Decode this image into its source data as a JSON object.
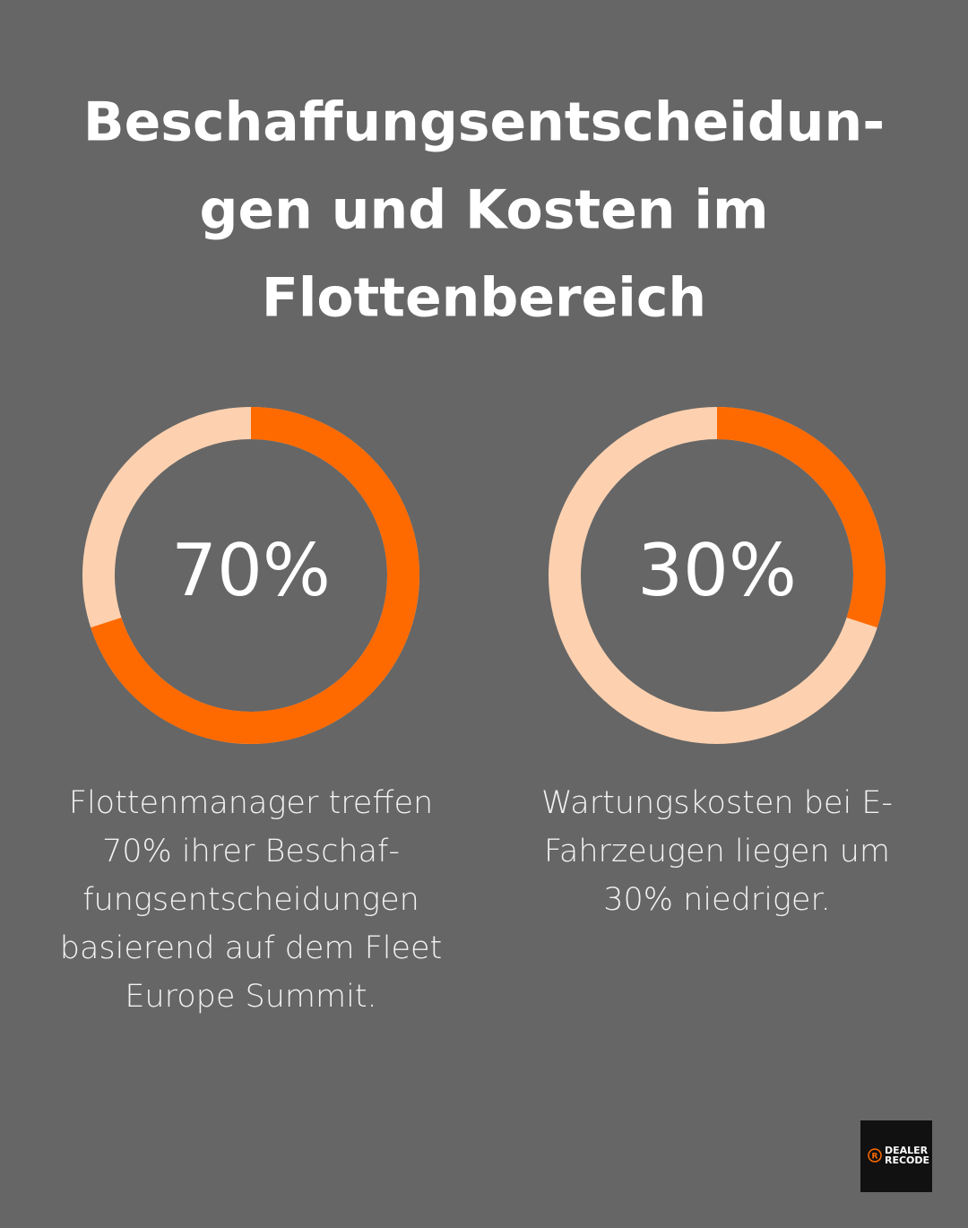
{
  "title": [
    "Beschaffungsentscheidun-",
    "gen und Kosten im",
    "Flottenbereich"
  ],
  "chart_data": [
    {
      "type": "donut",
      "values": [
        70
      ],
      "value_labels": [
        "70%"
      ],
      "color": "#ff6a00",
      "track_color": "#fdd1b0",
      "ylim": [
        0,
        100
      ],
      "description": [
        "Flottenmanager treffen",
        "70% ihrer Beschaf-",
        "fungsentscheidungen",
        "basierend auf dem Fleet",
        "Europe Summit."
      ]
    },
    {
      "type": "donut",
      "values": [
        30
      ],
      "value_labels": [
        "30%"
      ],
      "color": "#ff6a00",
      "track_color": "#fdd1b0",
      "ylim": [
        0,
        100
      ],
      "description": [
        "Wartungskosten bei E-",
        "Fahrzeugen liegen um",
        "30% niedriger."
      ]
    }
  ],
  "logo": [
    "DEALER",
    "RECODE"
  ]
}
